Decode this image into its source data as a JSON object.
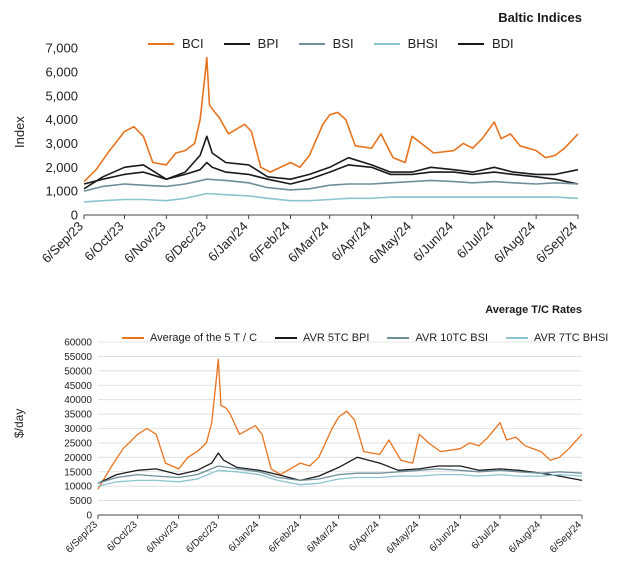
{
  "chart_data": [
    {
      "type": "line",
      "title": "Baltic Indices",
      "ylabel": "Index",
      "xlabel": "",
      "ylim": [
        0,
        7000
      ],
      "yticks": [
        0,
        1000,
        2000,
        3000,
        4000,
        5000,
        6000,
        7000
      ],
      "ytick_labels": [
        "0",
        "1,000",
        "2,000",
        "3,000",
        "4,000",
        "5,000",
        "6,000",
        "7,000"
      ],
      "xlim": [
        "2023-09-06",
        "2024-09-06"
      ],
      "xticks": [
        "2023-09-06",
        "2023-10-06",
        "2023-11-06",
        "2023-12-06",
        "2024-01-06",
        "2024-02-06",
        "2024-03-06",
        "2024-04-06",
        "2024-05-06",
        "2024-06-06",
        "2024-07-06",
        "2024-08-06",
        "2024-09-06"
      ],
      "xtick_labels": [
        "6/Sep/23",
        "6/Oct/23",
        "6/Nov/23",
        "6/Dec/23",
        "6/Jan/24",
        "6/Feb/24",
        "6/Mar/24",
        "6/Apr/24",
        "6/May/24",
        "6/Jun/24",
        "6/Jul/24",
        "6/Aug/24",
        "6/Sep/24"
      ],
      "legend_position": "top",
      "grid": false,
      "series": [
        {
          "name": "BCI",
          "color": "#e8731e",
          "x": [
            "2023-09-06",
            "2023-09-15",
            "2023-09-25",
            "2023-10-06",
            "2023-10-13",
            "2023-10-20",
            "2023-10-27",
            "2023-11-06",
            "2023-11-13",
            "2023-11-20",
            "2023-11-27",
            "2023-12-01",
            "2023-12-04",
            "2023-12-06",
            "2023-12-08",
            "2023-12-12",
            "2023-12-15",
            "2023-12-22",
            "2024-01-03",
            "2024-01-08",
            "2024-01-15",
            "2024-01-22",
            "2024-02-06",
            "2024-02-13",
            "2024-02-20",
            "2024-03-01",
            "2024-03-06",
            "2024-03-12",
            "2024-03-18",
            "2024-03-25",
            "2024-04-06",
            "2024-04-13",
            "2024-04-22",
            "2024-05-01",
            "2024-05-06",
            "2024-05-13",
            "2024-05-22",
            "2024-06-06",
            "2024-06-13",
            "2024-06-20",
            "2024-06-27",
            "2024-07-06",
            "2024-07-11",
            "2024-07-18",
            "2024-07-25",
            "2024-08-06",
            "2024-08-13",
            "2024-08-20",
            "2024-08-27",
            "2024-09-06"
          ],
          "y": [
            1400,
            1900,
            2700,
            3500,
            3700,
            3300,
            2200,
            2100,
            2600,
            2700,
            3000,
            4000,
            5500,
            6600,
            4600,
            4300,
            4100,
            3400,
            3800,
            3500,
            2000,
            1800,
            2200,
            2000,
            2500,
            3800,
            4200,
            4300,
            4000,
            2900,
            2800,
            3400,
            2400,
            2200,
            3300,
            3000,
            2600,
            2700,
            3000,
            2800,
            3200,
            3900,
            3200,
            3400,
            2900,
            2700,
            2400,
            2500,
            2800,
            3400
          ]
        },
        {
          "name": "BPI",
          "color": "#1a1a1a",
          "x": [
            "2023-09-06",
            "2023-09-20",
            "2023-10-06",
            "2023-10-20",
            "2023-11-06",
            "2023-11-20",
            "2023-12-01",
            "2023-12-06",
            "2023-12-10",
            "2023-12-20",
            "2024-01-06",
            "2024-01-20",
            "2024-02-06",
            "2024-02-20",
            "2024-03-06",
            "2024-03-20",
            "2024-04-06",
            "2024-04-20",
            "2024-05-06",
            "2024-05-20",
            "2024-06-06",
            "2024-06-20",
            "2024-07-06",
            "2024-07-20",
            "2024-08-06",
            "2024-08-20",
            "2024-09-06"
          ],
          "y": [
            1300,
            1500,
            1700,
            1800,
            1500,
            1700,
            1900,
            2200,
            2000,
            1800,
            1700,
            1500,
            1300,
            1500,
            1800,
            2100,
            2000,
            1700,
            1700,
            1800,
            1800,
            1700,
            1800,
            1700,
            1600,
            1500,
            1300
          ]
        },
        {
          "name": "BSI",
          "color": "#6e8f99",
          "x": [
            "2023-09-06",
            "2023-09-20",
            "2023-10-06",
            "2023-10-20",
            "2023-11-06",
            "2023-11-20",
            "2023-12-06",
            "2023-12-20",
            "2024-01-06",
            "2024-01-20",
            "2024-02-06",
            "2024-02-20",
            "2024-03-06",
            "2024-03-20",
            "2024-04-06",
            "2024-04-20",
            "2024-05-06",
            "2024-05-20",
            "2024-06-06",
            "2024-06-20",
            "2024-07-06",
            "2024-07-20",
            "2024-08-06",
            "2024-08-20",
            "2024-09-06"
          ],
          "y": [
            1000,
            1200,
            1300,
            1250,
            1200,
            1300,
            1500,
            1450,
            1350,
            1150,
            1050,
            1100,
            1250,
            1300,
            1300,
            1350,
            1400,
            1450,
            1400,
            1350,
            1400,
            1350,
            1300,
            1350,
            1300
          ]
        },
        {
          "name": "BHSI",
          "color": "#8cc4cf",
          "x": [
            "2023-09-06",
            "2023-09-20",
            "2023-10-06",
            "2023-10-20",
            "2023-11-06",
            "2023-11-20",
            "2023-12-06",
            "2023-12-20",
            "2024-01-06",
            "2024-01-20",
            "2024-02-06",
            "2024-02-20",
            "2024-03-06",
            "2024-03-20",
            "2024-04-06",
            "2024-04-20",
            "2024-05-06",
            "2024-05-20",
            "2024-06-06",
            "2024-06-20",
            "2024-07-06",
            "2024-07-20",
            "2024-08-06",
            "2024-08-20",
            "2024-09-06"
          ],
          "y": [
            550,
            600,
            650,
            650,
            600,
            700,
            900,
            850,
            800,
            700,
            600,
            600,
            650,
            700,
            700,
            750,
            750,
            750,
            750,
            750,
            750,
            750,
            750,
            750,
            700
          ]
        },
        {
          "name": "BDI",
          "color": "#1a1a1a",
          "x": [
            "2023-09-06",
            "2023-09-20",
            "2023-10-06",
            "2023-10-20",
            "2023-11-06",
            "2023-11-20",
            "2023-12-01",
            "2023-12-06",
            "2023-12-10",
            "2023-12-20",
            "2024-01-06",
            "2024-01-20",
            "2024-02-06",
            "2024-02-20",
            "2024-03-06",
            "2024-03-20",
            "2024-04-06",
            "2024-04-20",
            "2024-05-06",
            "2024-05-20",
            "2024-06-06",
            "2024-06-20",
            "2024-07-06",
            "2024-07-20",
            "2024-08-06",
            "2024-08-20",
            "2024-09-06"
          ],
          "y": [
            1100,
            1600,
            2000,
            2100,
            1500,
            1800,
            2500,
            3300,
            2600,
            2200,
            2100,
            1600,
            1500,
            1700,
            2000,
            2400,
            2100,
            1800,
            1800,
            2000,
            1900,
            1800,
            2000,
            1800,
            1700,
            1700,
            1900
          ]
        }
      ]
    },
    {
      "type": "line",
      "title": "Average T/C Rates",
      "ylabel": "$/day",
      "xlabel": "",
      "ylim": [
        0,
        60000
      ],
      "yticks": [
        0,
        5000,
        10000,
        15000,
        20000,
        25000,
        30000,
        35000,
        40000,
        45000,
        50000,
        55000,
        60000
      ],
      "ytick_labels": [
        "0",
        "5000",
        "10000",
        "15000",
        "20000",
        "25000",
        "30000",
        "35000",
        "40000",
        "45000",
        "50000",
        "55000",
        "60000"
      ],
      "xlim": [
        "2023-09-06",
        "2024-09-06"
      ],
      "xticks": [
        "2023-09-06",
        "2023-10-06",
        "2023-11-06",
        "2023-12-06",
        "2024-01-06",
        "2024-02-06",
        "2024-03-06",
        "2024-04-06",
        "2024-05-06",
        "2024-06-06",
        "2024-07-06",
        "2024-08-06",
        "2024-09-06"
      ],
      "xtick_labels": [
        "6/Sep/23",
        "6/Oct/23",
        "6/Nov/23",
        "6/Dec/23",
        "6/Jan/24",
        "6/Feb/24",
        "6/Mar/24",
        "6/Apr/24",
        "6/May/24",
        "6/Jun/24",
        "6/Jul/24",
        "6/Aug/24",
        "6/Sep/24"
      ],
      "legend_position": "top",
      "grid": true,
      "series": [
        {
          "name": "Average of the 5 T / C",
          "color": "#e8731e",
          "x": [
            "2023-09-06",
            "2023-09-15",
            "2023-09-25",
            "2023-10-06",
            "2023-10-13",
            "2023-10-20",
            "2023-10-27",
            "2023-11-06",
            "2023-11-13",
            "2023-11-20",
            "2023-11-27",
            "2023-12-01",
            "2023-12-04",
            "2023-12-06",
            "2023-12-08",
            "2023-12-12",
            "2023-12-15",
            "2023-12-22",
            "2024-01-03",
            "2024-01-08",
            "2024-01-15",
            "2024-01-22",
            "2024-02-06",
            "2024-02-13",
            "2024-02-20",
            "2024-03-01",
            "2024-03-06",
            "2024-03-12",
            "2024-03-18",
            "2024-03-25",
            "2024-04-06",
            "2024-04-13",
            "2024-04-22",
            "2024-05-01",
            "2024-05-06",
            "2024-05-13",
            "2024-05-22",
            "2024-06-06",
            "2024-06-13",
            "2024-06-20",
            "2024-06-27",
            "2024-07-06",
            "2024-07-11",
            "2024-07-18",
            "2024-07-25",
            "2024-08-06",
            "2024-08-13",
            "2024-08-20",
            "2024-08-27",
            "2024-09-06"
          ],
          "y": [
            9000,
            16000,
            23000,
            28000,
            30000,
            28000,
            18000,
            16000,
            20000,
            22000,
            25000,
            32000,
            45000,
            54000,
            38000,
            37000,
            35000,
            28000,
            31000,
            28000,
            16000,
            14000,
            18000,
            17000,
            20000,
            30000,
            34000,
            36000,
            33000,
            22000,
            21000,
            26000,
            19000,
            18000,
            28000,
            25000,
            22000,
            23000,
            25000,
            24000,
            27000,
            32000,
            26000,
            27000,
            24000,
            22000,
            19000,
            20000,
            23000,
            28000
          ]
        },
        {
          "name": "AVR 5TC BPI",
          "color": "#1a1a1a",
          "x": [
            "2023-09-06",
            "2023-09-20",
            "2023-10-06",
            "2023-10-20",
            "2023-11-06",
            "2023-11-20",
            "2023-12-01",
            "2023-12-06",
            "2023-12-10",
            "2023-12-20",
            "2024-01-06",
            "2024-01-20",
            "2024-02-06",
            "2024-02-20",
            "2024-03-06",
            "2024-03-20",
            "2024-04-06",
            "2024-04-20",
            "2024-05-06",
            "2024-05-20",
            "2024-06-06",
            "2024-06-20",
            "2024-07-06",
            "2024-07-20",
            "2024-08-06",
            "2024-08-20",
            "2024-09-06"
          ],
          "y": [
            11000,
            14000,
            15500,
            16000,
            14000,
            15500,
            18000,
            21500,
            19000,
            16500,
            15500,
            14000,
            12000,
            13500,
            16500,
            20000,
            18000,
            15500,
            16000,
            17000,
            17000,
            15500,
            16000,
            15500,
            14500,
            13500,
            12000
          ]
        },
        {
          "name": "AVR 10TC BSI",
          "color": "#6e8f99",
          "x": [
            "2023-09-06",
            "2023-09-20",
            "2023-10-06",
            "2023-10-20",
            "2023-11-06",
            "2023-11-20",
            "2023-12-06",
            "2023-12-20",
            "2024-01-06",
            "2024-01-20",
            "2024-02-06",
            "2024-02-20",
            "2024-03-06",
            "2024-03-20",
            "2024-04-06",
            "2024-04-20",
            "2024-05-06",
            "2024-05-20",
            "2024-06-06",
            "2024-06-20",
            "2024-07-06",
            "2024-07-20",
            "2024-08-06",
            "2024-08-20",
            "2024-09-06"
          ],
          "y": [
            11000,
            13000,
            14000,
            13500,
            13000,
            14000,
            17000,
            16000,
            15000,
            13000,
            12000,
            12500,
            14000,
            14500,
            14500,
            15000,
            15500,
            16000,
            15500,
            15000,
            15500,
            15000,
            14500,
            15000,
            14500
          ]
        },
        {
          "name": "AVR 7TC BHSI",
          "color": "#8cc4cf",
          "x": [
            "2023-09-06",
            "2023-09-20",
            "2023-10-06",
            "2023-10-20",
            "2023-11-06",
            "2023-11-20",
            "2023-12-06",
            "2023-12-20",
            "2024-01-06",
            "2024-01-20",
            "2024-02-06",
            "2024-02-20",
            "2024-03-06",
            "2024-03-20",
            "2024-04-06",
            "2024-04-20",
            "2024-05-06",
            "2024-05-20",
            "2024-06-06",
            "2024-06-20",
            "2024-07-06",
            "2024-07-20",
            "2024-08-06",
            "2024-08-20",
            "2024-09-06"
          ],
          "y": [
            10000,
            11500,
            12000,
            12000,
            11500,
            12500,
            15500,
            15000,
            14000,
            12000,
            10500,
            11000,
            12500,
            13000,
            13000,
            13500,
            13500,
            14000,
            14000,
            13500,
            14000,
            13500,
            13500,
            14000,
            13500
          ]
        }
      ]
    }
  ]
}
